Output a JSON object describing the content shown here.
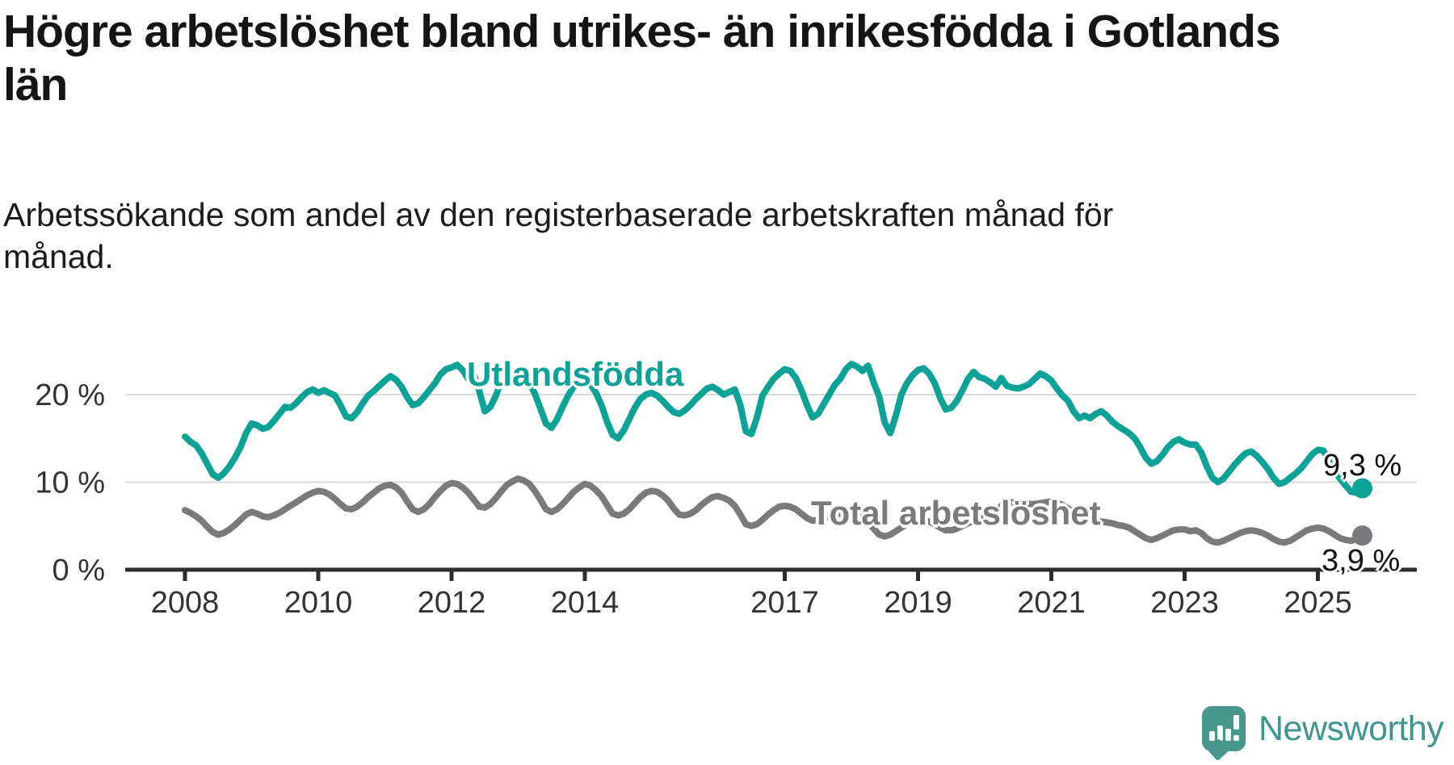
{
  "header": {
    "title": "Högre arbetslöshet bland utrikes- än inrikesfödda i Gotlands län",
    "subtitle": "Arbetssökande som andel av den registerbaserade arbetskraften månad för månad."
  },
  "footer": {
    "brand": "Newsworthy",
    "brand_color": "#3e968c",
    "logo_icon": "speech-bubble-bar-chart-icon"
  },
  "chart_data": {
    "type": "line",
    "title": "Högre arbetslöshet bland utrikes- än inrikesfödda i Gotlands län",
    "xlabel": "",
    "ylabel": "Arbetssökande som andel av den registerbaserade arbetskraften",
    "unit": "%",
    "x_start": "2008-01",
    "x_end": "2025-09",
    "x_frequency": "monthly",
    "x_tick_years": [
      2008,
      2010,
      2012,
      2014,
      2017,
      2019,
      2021,
      2023,
      2025
    ],
    "y_ticks": [
      {
        "value": 0,
        "label": "0 %"
      },
      {
        "value": 10,
        "label": "10 %"
      },
      {
        "value": 20,
        "label": "20 %"
      }
    ],
    "ylim": [
      0,
      25.5
    ],
    "grid": "horizontal",
    "legend_position": "inline-labels",
    "series": [
      {
        "name": "Utlandsfödda",
        "color": "#0ca296",
        "end_value_label": "9,3 %",
        "end_value": 9.3,
        "values": [
          15.2,
          14.6,
          14.2,
          13.3,
          12.1,
          10.9,
          10.5,
          11.0,
          11.8,
          12.8,
          14.0,
          15.6,
          16.7,
          16.5,
          16.1,
          16.3,
          17.0,
          17.8,
          18.6,
          18.5,
          19.0,
          19.7,
          20.3,
          20.6,
          20.2,
          20.5,
          20.2,
          19.9,
          18.8,
          17.5,
          17.3,
          18.0,
          19.0,
          19.9,
          20.4,
          21.0,
          21.6,
          22.1,
          21.7,
          20.9,
          19.7,
          18.8,
          19.0,
          19.7,
          20.5,
          21.3,
          22.3,
          22.9,
          23.1,
          23.4,
          22.8,
          21.8,
          22.4,
          20.4,
          18.1,
          18.6,
          19.9,
          21.6,
          22.3,
          22.6,
          22.8,
          22.3,
          21.4,
          20.1,
          18.4,
          16.7,
          16.2,
          17.2,
          18.6,
          19.9,
          20.9,
          21.5,
          21.7,
          21.2,
          20.2,
          18.8,
          16.9,
          15.4,
          15.0,
          15.9,
          17.2,
          18.5,
          19.5,
          20.0,
          20.2,
          19.9,
          19.3,
          18.6,
          18.0,
          17.8,
          18.2,
          18.8,
          19.5,
          20.1,
          20.7,
          20.9,
          20.5,
          20.0,
          20.3,
          20.6,
          18.8,
          15.8,
          15.5,
          17.4,
          19.9,
          20.9,
          21.8,
          22.4,
          22.9,
          22.7,
          21.9,
          20.5,
          18.8,
          17.4,
          17.8,
          18.9,
          20.0,
          21.1,
          21.8,
          22.9,
          23.5,
          23.2,
          22.7,
          23.3,
          21.4,
          19.8,
          16.8,
          15.6,
          17.6,
          20.0,
          21.3,
          22.2,
          22.8,
          23.0,
          22.4,
          21.3,
          19.6,
          18.3,
          18.5,
          19.3,
          20.5,
          21.8,
          22.6,
          22.0,
          21.8,
          21.4,
          20.9,
          21.9,
          21.0,
          20.8,
          20.7,
          20.9,
          21.2,
          21.8,
          22.4,
          22.1,
          21.6,
          20.7,
          19.9,
          19.3,
          18.1,
          17.3,
          17.6,
          17.3,
          17.8,
          18.1,
          17.6,
          16.9,
          16.4,
          16.0,
          15.6,
          15.0,
          14.0,
          12.8,
          12.1,
          12.4,
          13.1,
          14.0,
          14.6,
          14.9,
          14.5,
          14.3,
          14.3,
          13.4,
          11.8,
          10.5,
          10.0,
          10.4,
          11.2,
          12.0,
          12.7,
          13.3,
          13.5,
          13.0,
          12.3,
          11.5,
          10.5,
          9.8,
          10.0,
          10.5,
          11.0,
          11.6,
          12.4,
          13.2,
          13.7,
          13.6,
          12.4,
          11.2,
          10.4,
          9.6,
          8.9,
          8.8,
          9.3
        ]
      },
      {
        "name": "Total arbetslöshet",
        "color": "#7a7a7c",
        "end_value_label": "3,9 %",
        "end_value": 3.9,
        "values": [
          6.8,
          6.5,
          6.1,
          5.6,
          4.9,
          4.3,
          4.0,
          4.2,
          4.6,
          5.1,
          5.7,
          6.3,
          6.6,
          6.4,
          6.1,
          6.0,
          6.2,
          6.5,
          6.9,
          7.3,
          7.7,
          8.1,
          8.5,
          8.8,
          9.0,
          8.9,
          8.6,
          8.1,
          7.5,
          7.0,
          6.9,
          7.2,
          7.7,
          8.3,
          8.8,
          9.3,
          9.6,
          9.7,
          9.4,
          8.8,
          7.8,
          6.9,
          6.6,
          6.9,
          7.5,
          8.3,
          9.0,
          9.6,
          9.9,
          9.8,
          9.4,
          8.8,
          8.0,
          7.2,
          7.1,
          7.5,
          8.2,
          9.0,
          9.7,
          10.1,
          10.4,
          10.2,
          9.8,
          9.0,
          8.0,
          6.9,
          6.6,
          6.9,
          7.5,
          8.2,
          8.9,
          9.4,
          9.8,
          9.6,
          9.1,
          8.4,
          7.4,
          6.4,
          6.2,
          6.4,
          6.9,
          7.6,
          8.3,
          8.8,
          9.0,
          8.9,
          8.5,
          7.9,
          7.0,
          6.3,
          6.2,
          6.4,
          6.8,
          7.4,
          7.9,
          8.3,
          8.4,
          8.2,
          7.9,
          7.3,
          6.3,
          5.2,
          5.0,
          5.2,
          5.7,
          6.3,
          6.8,
          7.2,
          7.3,
          7.2,
          6.9,
          6.4,
          5.9,
          5.6,
          5.7,
          5.9,
          6.1,
          6.3,
          6.4,
          6.4,
          6.4,
          6.2,
          5.9,
          5.4,
          4.7,
          4.0,
          3.8,
          4.0,
          4.4,
          4.8,
          5.2,
          5.6,
          5.8,
          5.7,
          5.5,
          5.2,
          4.8,
          4.5,
          4.5,
          4.7,
          5.0,
          5.3,
          5.6,
          5.8,
          6.0,
          6.1,
          6.6,
          7.3,
          7.6,
          7.7,
          7.6,
          7.6,
          7.5,
          7.5,
          7.6,
          7.7,
          7.8,
          7.7,
          7.4,
          7.0,
          6.6,
          6.1,
          5.8,
          5.7,
          5.6,
          5.5,
          5.4,
          5.3,
          5.1,
          5.0,
          4.8,
          4.4,
          4.0,
          3.6,
          3.4,
          3.6,
          3.9,
          4.2,
          4.5,
          4.6,
          4.6,
          4.4,
          4.5,
          4.2,
          3.6,
          3.2,
          3.1,
          3.3,
          3.6,
          3.9,
          4.2,
          4.4,
          4.5,
          4.4,
          4.2,
          3.9,
          3.5,
          3.2,
          3.1,
          3.3,
          3.7,
          4.1,
          4.5,
          4.7,
          4.8,
          4.7,
          4.4,
          4.0,
          3.6,
          3.4,
          3.3,
          3.5,
          3.9
        ]
      }
    ]
  }
}
